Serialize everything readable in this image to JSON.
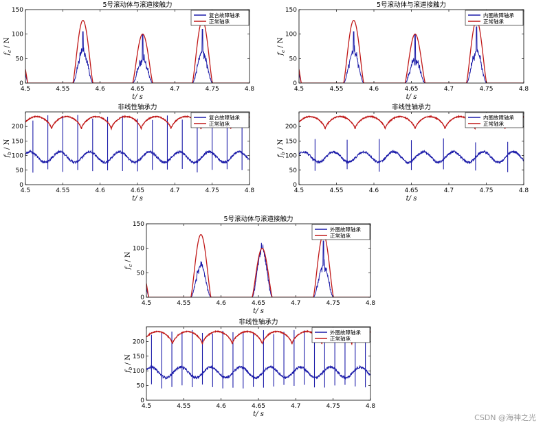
{
  "watermark": "CSDN @海神之光",
  "colors": {
    "fault": "#1a1aa8",
    "normal": "#c01818",
    "axis": "#000000"
  },
  "chart_data": [
    {
      "id": "tl-contact",
      "type": "line",
      "title": "5号滚动体与滚道接触力",
      "xlabel": "t/ s",
      "ylabel": "f_c / N",
      "xlim": [
        4.5,
        4.8
      ],
      "ylim": [
        0,
        150
      ],
      "xticks": [
        "4.5",
        "4.55",
        "4.6",
        "4.65",
        "4.7",
        "4.75",
        "4.8"
      ],
      "yticks": [
        "0",
        "50",
        "100",
        "150"
      ],
      "legend": [
        "复合故障轴承",
        "正常轴承"
      ],
      "legend_position": "top-right",
      "signal": "contact",
      "peaks": {
        "centers": [
          4.577,
          4.657,
          4.737
        ],
        "normal_peaks": [
          128,
          100,
          128
        ],
        "fault_peaks": [
          65,
          48,
          65
        ],
        "fault_spikes": [
          105,
          100,
          110
        ]
      }
    },
    {
      "id": "tr-contact",
      "type": "line",
      "title": "5号滚动体与滚道接触力",
      "xlabel": "t/ s",
      "ylabel": "f_c / N",
      "xlim": [
        4.5,
        4.8
      ],
      "ylim": [
        0,
        150
      ],
      "xticks": [
        "4.5",
        "4.55",
        "4.6",
        "4.65",
        "4.7",
        "4.75",
        "4.8"
      ],
      "yticks": [
        "0",
        "50",
        "100",
        "150"
      ],
      "legend": [
        "内圈故障轴承",
        "正常轴承"
      ],
      "legend_position": "top-right",
      "signal": "contact",
      "peaks": {
        "centers": [
          4.573,
          4.655,
          4.737
        ],
        "normal_peaks": [
          128,
          100,
          128
        ],
        "fault_peaks": [
          65,
          48,
          65
        ],
        "fault_spikes": [
          105,
          100,
          115
        ]
      }
    },
    {
      "id": "ml-bearing",
      "type": "line",
      "title": "非线性轴承力",
      "xlabel": "t/ s",
      "ylabel": "f_b / N",
      "xlim": [
        4.5,
        4.8
      ],
      "ylim": [
        0,
        250
      ],
      "xticks": [
        "4.5",
        "4.55",
        "4.6",
        "4.65",
        "4.7",
        "4.75",
        "4.8"
      ],
      "yticks": [
        "0",
        "50",
        "100",
        "150",
        "200"
      ],
      "legend": [
        "复合故障轴承",
        "正常轴承"
      ],
      "legend_position": "top-right",
      "signal": "bearing",
      "bearing": {
        "normal_mean": 212,
        "normal_amp": 22,
        "fault_mean": 95,
        "fault_amp": 20,
        "period": 0.04,
        "spike_high": 240,
        "spike_low": 40,
        "spikes_per_period": 2
      }
    },
    {
      "id": "mr-bearing",
      "type": "line",
      "title": "非线性轴承力",
      "xlabel": "t/ s",
      "ylabel": "f_b / N",
      "xlim": [
        4.5,
        4.8
      ],
      "ylim": [
        0,
        250
      ],
      "xticks": [
        "4.5",
        "4.55",
        "4.6",
        "4.65",
        "4.7",
        "4.75",
        "4.8"
      ],
      "yticks": [
        "0",
        "50",
        "100",
        "150",
        "200"
      ],
      "legend": [
        "内圈故障轴承",
        "正常轴承"
      ],
      "legend_position": "top-right",
      "signal": "bearing",
      "bearing": {
        "normal_mean": 212,
        "normal_amp": 22,
        "fault_mean": 95,
        "fault_amp": 20,
        "period": 0.04,
        "spike_high": 160,
        "spike_low": 40,
        "spikes_per_period": 1
      }
    },
    {
      "id": "bl-contact",
      "type": "line",
      "title": "5号滚动体与滚道接触力",
      "xlabel": "t/ s",
      "ylabel": "f_c / N",
      "xlim": [
        4.5,
        4.8
      ],
      "ylim": [
        0,
        150
      ],
      "xticks": [
        "4.5",
        "4.55",
        "4.6",
        "4.65",
        "4.7",
        "4.75",
        "4.8"
      ],
      "yticks": [
        "0",
        "50",
        "100",
        "150"
      ],
      "legend": [
        "外圈故障轴承",
        "正常轴承"
      ],
      "legend_position": "top-right",
      "signal": "contact",
      "peaks": {
        "centers": [
          4.573,
          4.655,
          4.737
        ],
        "normal_peaks": [
          128,
          100,
          128
        ],
        "fault_peaks": [
          65,
          100,
          65
        ],
        "fault_spikes": [
          65,
          100,
          115
        ]
      }
    },
    {
      "id": "bb-bearing",
      "type": "line",
      "title": "非线性轴承力",
      "xlabel": "t/ s",
      "ylabel": "f_b / N",
      "xlim": [
        4.5,
        4.8
      ],
      "ylim": [
        0,
        250
      ],
      "xticks": [
        "4.5",
        "4.55",
        "4.6",
        "4.65",
        "4.7",
        "4.75",
        "4.8"
      ],
      "yticks": [
        "0",
        "50",
        "100",
        "150",
        "200"
      ],
      "legend": [
        "外圈故障轴承",
        "正常轴承"
      ],
      "legend_position": "top-right",
      "signal": "bearing",
      "bearing": {
        "normal_mean": 212,
        "normal_amp": 22,
        "fault_mean": 95,
        "fault_amp": 20,
        "period": 0.04,
        "spike_high": 240,
        "spike_low": 40,
        "spikes_per_period": 3
      }
    }
  ]
}
